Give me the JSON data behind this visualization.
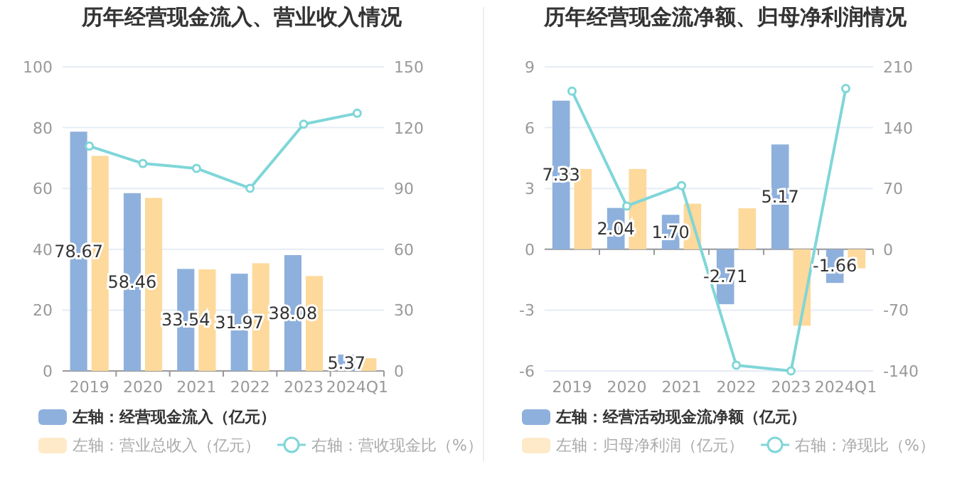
{
  "chart_data": [
    {
      "type": "bar",
      "title": "历年经营现金流入、营业收入情况",
      "categories": [
        "2019",
        "2020",
        "2021",
        "2022",
        "2023",
        "2024Q1"
      ],
      "ylim": [
        0,
        100
      ],
      "yticks": [
        0,
        20,
        40,
        60,
        80,
        100
      ],
      "y2lim": [
        0,
        150
      ],
      "y2ticks": [
        0,
        30,
        60,
        90,
        120,
        150
      ],
      "grid": "y",
      "legend": "bottom",
      "series": [
        {
          "name": "左轴：经营现金流入（亿元）",
          "color": "#8eb0dc",
          "values": [
            78.67,
            58.46,
            33.54,
            31.97,
            38.08,
            5.37
          ],
          "value_labels": [
            "78.67",
            "58.46",
            "33.54",
            "31.97",
            "38.08",
            "5.37"
          ]
        },
        {
          "name": "左轴：营业总收入（亿元）",
          "color": "#fdd99b",
          "values": [
            70.7,
            56.9,
            33.4,
            35.4,
            31.2,
            4.2
          ]
        },
        {
          "name": "右轴：营收现金比（%）",
          "type": "line",
          "axis": "y2",
          "color": "#7fd6d8",
          "marker": "circle",
          "values": [
            110.9,
            102.3,
            99.9,
            90.1,
            121.7,
            127.1
          ]
        }
      ]
    },
    {
      "type": "bar",
      "title": "历年经营现金流净额、归母净利润情况",
      "categories": [
        "2019",
        "2020",
        "2021",
        "2022",
        "2023",
        "2024Q1"
      ],
      "ylim": [
        -6,
        9
      ],
      "yticks": [
        -6,
        -3,
        0,
        3,
        6,
        9
      ],
      "y2lim": [
        -140,
        210
      ],
      "y2ticks": [
        -140,
        -70,
        0,
        70,
        140,
        210
      ],
      "grid": "y",
      "legend": "bottom",
      "series": [
        {
          "name": "左轴：经营活动现金流净额（亿元）",
          "color": "#8eb0dc",
          "values": [
            7.33,
            2.04,
            1.7,
            -2.71,
            5.17,
            -1.66
          ],
          "value_labels": [
            "7.33",
            "2.04",
            "1.70",
            "-2.71",
            "5.17",
            "-1.66"
          ]
        },
        {
          "name": "左轴：归母净利润（亿元）",
          "color": "#fdd99b",
          "values": [
            3.96,
            3.96,
            2.25,
            2.02,
            -3.77,
            -0.94
          ]
        },
        {
          "name": "右轴：净现比（%）",
          "type": "line",
          "axis": "y2",
          "color": "#7fd6d8",
          "marker": "circle",
          "values": [
            182,
            49.8,
            73.3,
            -133.4,
            -140,
            185
          ]
        }
      ]
    }
  ]
}
